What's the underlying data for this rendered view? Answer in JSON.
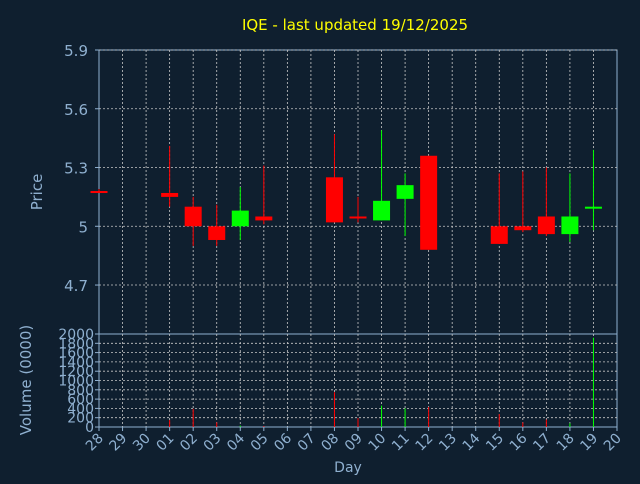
{
  "chart_data": {
    "type": "candlestick",
    "title": "IQE - last updated 19/12/2025",
    "xlabel": "Day",
    "x_tick_labels": [
      "28",
      "29",
      "30",
      "01",
      "02",
      "03",
      "04",
      "05",
      "06",
      "07",
      "08",
      "09",
      "10",
      "11",
      "12",
      "13",
      "14",
      "15",
      "16",
      "17",
      "18",
      "19",
      "20"
    ],
    "grid": true,
    "colors": {
      "up": "#00ff00",
      "down": "#ff0000",
      "title": "#ffff00",
      "axis_text": "#8fb0d0",
      "background": "#0f1f2f",
      "grid": "#c8c8c8",
      "frame": "#8fb0d0"
    },
    "price_panel": {
      "ylabel": "Price",
      "ylim": [
        4.45,
        5.9
      ],
      "y_tick_values": [
        4.7,
        5.0,
        5.3,
        5.6,
        5.9
      ],
      "y_tick_labels": [
        "4.7",
        "5",
        "5.3",
        "5.6",
        "5.9"
      ],
      "candles": [
        {
          "day": "28",
          "open": 5.18,
          "high": 5.19,
          "low": 5.17,
          "close": 5.17
        },
        {
          "day": "01",
          "open": 5.17,
          "high": 5.41,
          "low": 5.1,
          "close": 5.15
        },
        {
          "day": "02",
          "open": 5.1,
          "high": 5.15,
          "low": 4.9,
          "close": 5.0
        },
        {
          "day": "03",
          "open": 5.0,
          "high": 5.11,
          "low": 4.9,
          "close": 4.93
        },
        {
          "day": "04",
          "open": 5.0,
          "high": 5.2,
          "low": 4.93,
          "close": 5.08
        },
        {
          "day": "05",
          "open": 5.05,
          "high": 5.31,
          "low": 5.01,
          "close": 5.03
        },
        {
          "day": "08",
          "open": 5.25,
          "high": 5.47,
          "low": 5.02,
          "close": 5.02
        },
        {
          "day": "09",
          "open": 5.05,
          "high": 5.15,
          "low": 5.02,
          "close": 5.04
        },
        {
          "day": "10",
          "open": 5.03,
          "high": 5.49,
          "low": 5.03,
          "close": 5.13
        },
        {
          "day": "11",
          "open": 5.14,
          "high": 5.27,
          "low": 4.95,
          "close": 5.21
        },
        {
          "day": "12",
          "open": 5.36,
          "high": 5.36,
          "low": 4.88,
          "close": 4.88
        },
        {
          "day": "15",
          "open": 5.0,
          "high": 5.27,
          "low": 4.91,
          "close": 4.91
        },
        {
          "day": "16",
          "open": 5.0,
          "high": 5.28,
          "low": 4.97,
          "close": 4.98
        },
        {
          "day": "17",
          "open": 5.05,
          "high": 5.3,
          "low": 4.95,
          "close": 4.96
        },
        {
          "day": "18",
          "open": 4.96,
          "high": 5.27,
          "low": 4.92,
          "close": 5.05
        },
        {
          "day": "19",
          "open": 5.09,
          "high": 5.39,
          "low": 4.98,
          "close": 5.1
        }
      ]
    },
    "volume_panel": {
      "ylabel": "Volume (0000)",
      "ylim": [
        0,
        2000
      ],
      "y_tick_labels": [
        "0",
        "200",
        "400",
        "600",
        "800",
        "1000",
        "1200",
        "1400",
        "1600",
        "1800",
        "2000"
      ],
      "bars": [
        {
          "day": "01",
          "value": 150,
          "direction": "down"
        },
        {
          "day": "02",
          "value": 390,
          "direction": "down"
        },
        {
          "day": "03",
          "value": 100,
          "direction": "down"
        },
        {
          "day": "04",
          "value": 30,
          "direction": "up"
        },
        {
          "day": "05",
          "value": 20,
          "direction": "down"
        },
        {
          "day": "08",
          "value": 750,
          "direction": "down"
        },
        {
          "day": "09",
          "value": 190,
          "direction": "down"
        },
        {
          "day": "10",
          "value": 460,
          "direction": "up"
        },
        {
          "day": "11",
          "value": 400,
          "direction": "up"
        },
        {
          "day": "12",
          "value": 430,
          "direction": "down"
        },
        {
          "day": "15",
          "value": 280,
          "direction": "down"
        },
        {
          "day": "16",
          "value": 100,
          "direction": "down"
        },
        {
          "day": "17",
          "value": 160,
          "direction": "down"
        },
        {
          "day": "18",
          "value": 80,
          "direction": "up"
        },
        {
          "day": "19",
          "value": 1920,
          "direction": "up"
        }
      ]
    }
  }
}
